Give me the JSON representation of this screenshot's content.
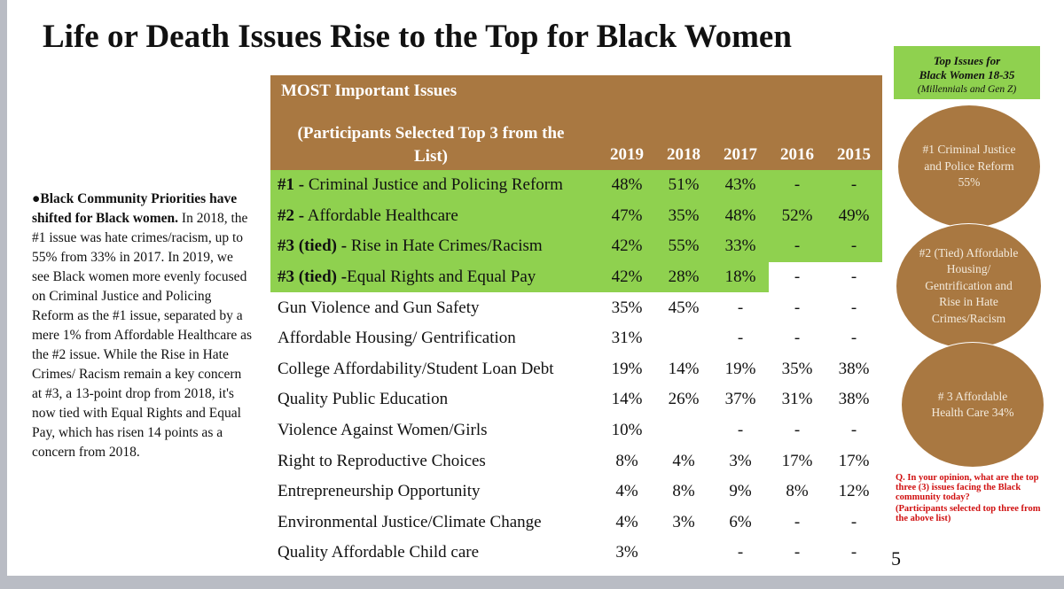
{
  "title": "Life or Death Issues Rise to the Top for Black Women",
  "sidebar": {
    "bold": "●Black Community Priorities have shifted for Black women.",
    "text": " In 2018, the #1 issue was hate crimes/racism, up to 55% from 33% in 2017.  In 2019, we see Black women more evenly focused on Criminal Justice and Policing Reform as the #1 issue, separated by a mere 1% from Affordable Healthcare as the #2 issue. While the Rise in Hate Crimes/ Racism remain a key concern at #3, a 13-point drop from 2018, it's now tied with Equal Rights and Equal Pay, which has risen 14 points as a concern from 2018."
  },
  "table": {
    "header_title": "MOST Important Issues",
    "header_sub": "(Participants Selected Top 3 from the List)",
    "years": [
      "2019",
      "2018",
      "2017",
      "2016",
      "2015"
    ],
    "rows": [
      {
        "label": "#1 - Criminal Justice and Policing Reform",
        "prefix": "#1 -",
        "rest": " Criminal Justice and Policing Reform",
        "v": [
          "48%",
          "51%",
          "43%",
          "-",
          "-"
        ],
        "green": 5
      },
      {
        "prefix": "#2 -",
        "rest": " Affordable Healthcare",
        "v": [
          "47%",
          "35%",
          "48%",
          "52%",
          "49%"
        ],
        "green": 5
      },
      {
        "prefix": "#3 (tied) -",
        "rest": " Rise in Hate Crimes/Racism",
        "v": [
          "42%",
          "55%",
          "33%",
          "-",
          "-"
        ],
        "green": 5
      },
      {
        "prefix": "#3 (tied) -",
        "rest": "Equal Rights and Equal Pay",
        "v": [
          "42%",
          "28%",
          "18%",
          "-",
          "-"
        ],
        "green": 3
      },
      {
        "prefix": "",
        "rest": "Gun Violence and Gun Safety",
        "v": [
          "35%",
          "45%",
          "-",
          "-",
          "-"
        ],
        "green": -1
      },
      {
        "prefix": "",
        "rest": "Affordable Housing/ Gentrification",
        "v": [
          "31%",
          "",
          "-",
          "-",
          "-"
        ],
        "green": -1
      },
      {
        "prefix": "",
        "rest": "College Affordability/Student Loan Debt",
        "v": [
          "19%",
          "14%",
          "19%",
          "35%",
          "38%"
        ],
        "green": -1
      },
      {
        "prefix": "",
        "rest": "Quality Public Education",
        "v": [
          "14%",
          "26%",
          "37%",
          "31%",
          "38%"
        ],
        "green": -1
      },
      {
        "prefix": "",
        "rest": "Violence Against Women/Girls",
        "v": [
          "10%",
          "",
          "-",
          "-",
          "-"
        ],
        "green": -1
      },
      {
        "prefix": "",
        "rest": "Right to Reproductive Choices",
        "v": [
          "8%",
          "4%",
          "3%",
          "17%",
          "17%"
        ],
        "green": -1
      },
      {
        "prefix": "",
        "rest": "Entrepreneurship Opportunity",
        "v": [
          "4%",
          "8%",
          "9%",
          "8%",
          "12%"
        ],
        "green": -1
      },
      {
        "prefix": "",
        "rest": "Environmental Justice/Climate Change",
        "v": [
          "4%",
          "3%",
          "6%",
          "-",
          "-"
        ],
        "green": -1
      },
      {
        "prefix": "",
        "rest": "Quality Affordable Child care",
        "v": [
          "3%",
          "",
          "-",
          "-",
          "-"
        ],
        "green": -1
      }
    ]
  },
  "note": {
    "q": "Q. In your opinion, what are the top three (3) issues facing the Black community today?",
    "sub": "(Participants selected top three from the above list)"
  },
  "page_number": "5",
  "right": {
    "title1": "Top Issues for",
    "title2": "Black Women 18-35",
    "title3": "(Millennials and Gen Z)",
    "c1": "#1 Criminal Justice and Police Reform  55%",
    "c2": "#2 (Tied) Affordable Housing/ Gentrification and Rise in Hate Crimes/Racism",
    "c3": "# 3 Affordable Health Care 34%"
  },
  "colors": {
    "brown": "#a97841",
    "green": "#8fd14f",
    "red": "#d01010"
  }
}
